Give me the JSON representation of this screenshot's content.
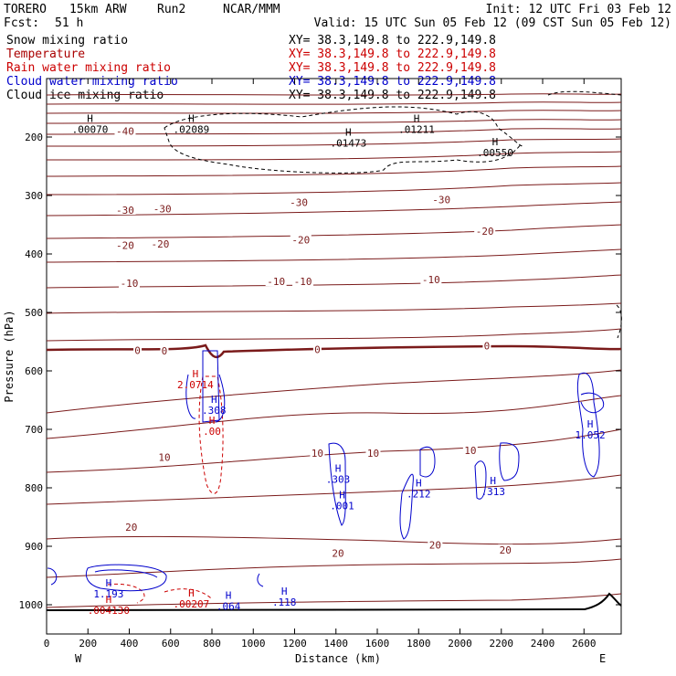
{
  "header": {
    "model": "TORERO",
    "resolution": "15km ARW",
    "run": "Run2",
    "org": "NCAR/MMM",
    "init": "Init: 12 UTC Fri 03 Feb 12",
    "fcst_label": "Fcst:",
    "fcst_value": "51 h",
    "valid": "Valid: 15 UTC Sun 05 Feb 12 (09 CST Sun 05 Feb 12)"
  },
  "legend": [
    {
      "name": "Snow mixing ratio",
      "color": "#000000",
      "xy": "XY= 38.3,149.8 to 222.9,149.8"
    },
    {
      "name": "Temperature",
      "color": "#aa0000",
      "xy": "XY= 38.3,149.8 to 222.9,149.8"
    },
    {
      "name": "Rain water mixing ratio",
      "color": "#cc0000",
      "xy": "XY= 38.3,149.8 to 222.9,149.8"
    },
    {
      "name": "Cloud water mixing ratio",
      "color": "#0000cc",
      "xy": "XY= 38.3,149.8 to 222.9,149.8"
    },
    {
      "name": "Cloud ice mixing ratio",
      "color": "#000000",
      "xy": "XY= 38.3,149.8 to 222.9,149.8"
    }
  ],
  "chart_data": {
    "type": "contour-cross-section",
    "xlabel": "Distance (km)",
    "ylabel": "Pressure (hPa)",
    "xlim": [
      0,
      2780
    ],
    "ylim": [
      1050,
      100
    ],
    "x_ticks": [
      0,
      200,
      400,
      600,
      800,
      1000,
      1200,
      1400,
      1600,
      1800,
      2000,
      2200,
      2400,
      2600
    ],
    "y_ticks": [
      200,
      300,
      400,
      500,
      600,
      700,
      800,
      900,
      1000
    ],
    "x_left_label": "W",
    "x_right_label": "E",
    "temperature_labels": [
      {
        "x": 380,
        "p": 190,
        "text": "-40"
      },
      {
        "x": 380,
        "p": 325,
        "text": "-30"
      },
      {
        "x": 560,
        "p": 323,
        "text": "-30"
      },
      {
        "x": 1220,
        "p": 312,
        "text": "-30"
      },
      {
        "x": 1910,
        "p": 307,
        "text": "-30"
      },
      {
        "x": 380,
        "p": 385,
        "text": "-20"
      },
      {
        "x": 550,
        "p": 383,
        "text": "-20"
      },
      {
        "x": 1230,
        "p": 376,
        "text": "-20"
      },
      {
        "x": 2120,
        "p": 361,
        "text": "-20"
      },
      {
        "x": 400,
        "p": 450,
        "text": "-10"
      },
      {
        "x": 1110,
        "p": 447,
        "text": "-10"
      },
      {
        "x": 1240,
        "p": 447,
        "text": "-10"
      },
      {
        "x": 1860,
        "p": 444,
        "text": "-10"
      },
      {
        "x": 440,
        "p": 565,
        "text": "0"
      },
      {
        "x": 570,
        "p": 566,
        "text": "0"
      },
      {
        "x": 1310,
        "p": 563,
        "text": "0"
      },
      {
        "x": 2130,
        "p": 557,
        "text": "0"
      },
      {
        "x": 570,
        "p": 748,
        "text": "10"
      },
      {
        "x": 1310,
        "p": 741,
        "text": "10"
      },
      {
        "x": 1580,
        "p": 741,
        "text": "10"
      },
      {
        "x": 2050,
        "p": 736,
        "text": "10"
      },
      {
        "x": 410,
        "p": 867,
        "text": "20"
      },
      {
        "x": 1410,
        "p": 912,
        "text": "20"
      },
      {
        "x": 1880,
        "p": 898,
        "text": "20"
      },
      {
        "x": 2220,
        "p": 906,
        "text": "20"
      }
    ],
    "cloud_ice_maxima": [
      {
        "x": 210,
        "p": 174,
        "value": ".00070"
      },
      {
        "x": 700,
        "p": 174,
        "value": ".02089"
      },
      {
        "x": 1460,
        "p": 198,
        "value": ".01473"
      },
      {
        "x": 1790,
        "p": 174,
        "value": ".01211"
      },
      {
        "x": 2170,
        "p": 214,
        "value": ".00550"
      }
    ],
    "cloud_water_maxima": [
      {
        "x": 300,
        "p": 969,
        "value": "1.193"
      },
      {
        "x": 880,
        "p": 990,
        "value": ".064"
      },
      {
        "x": 1150,
        "p": 983,
        "value": ".118"
      },
      {
        "x": 1410,
        "p": 773,
        "value": ".303"
      },
      {
        "x": 1430,
        "p": 818,
        "value": ".001"
      },
      {
        "x": 1800,
        "p": 798,
        "value": ".212"
      },
      {
        "x": 2160,
        "p": 794,
        "value": ".313"
      },
      {
        "x": 2630,
        "p": 697,
        "value": "1.052"
      },
      {
        "x": 810,
        "p": 655,
        "value": ".308"
      }
    ],
    "rain_maxima": [
      {
        "x": 300,
        "p": 997,
        "value": ".004130"
      },
      {
        "x": 700,
        "p": 986,
        "value": ".00207"
      },
      {
        "x": 720,
        "p": 611,
        "value": "2.0714"
      },
      {
        "x": 800,
        "p": 691,
        "value": ".00"
      }
    ]
  }
}
